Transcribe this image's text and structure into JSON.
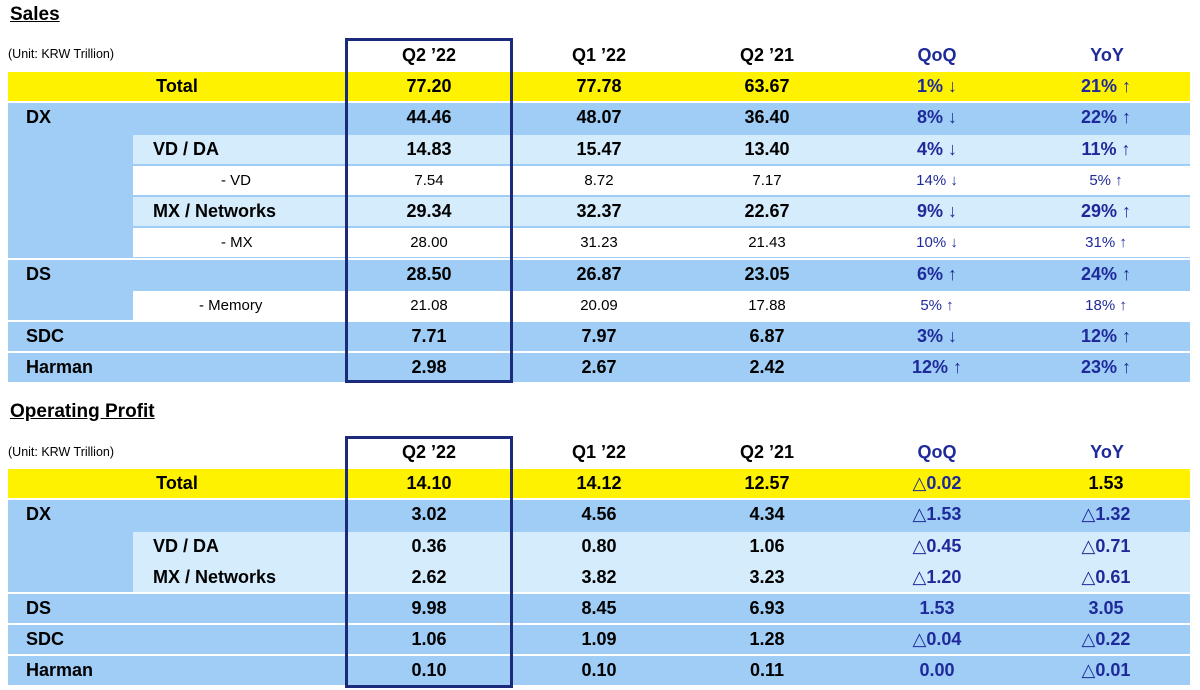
{
  "sales": {
    "title": "Sales",
    "unit": "(Unit: KRW Trillion)",
    "headers": [
      "Q2 ’22",
      "Q1 ’22",
      "Q2 ’21",
      "QoQ",
      "YoY"
    ],
    "rows": [
      {
        "label": "Total",
        "values": [
          "77.20",
          "77.78",
          "63.67",
          "1% ↓",
          "21% ↑"
        ]
      },
      {
        "label": "DX",
        "values": [
          "44.46",
          "48.07",
          "36.40",
          "8% ↓",
          "22% ↑"
        ]
      },
      {
        "label": "VD / DA",
        "values": [
          "14.83",
          "15.47",
          "13.40",
          "4% ↓",
          "11% ↑"
        ]
      },
      {
        "label": "- VD",
        "values": [
          "7.54",
          "8.72",
          "7.17",
          "14% ↓",
          "5% ↑"
        ]
      },
      {
        "label": "MX / Networks",
        "values": [
          "29.34",
          "32.37",
          "22.67",
          "9% ↓",
          "29% ↑"
        ]
      },
      {
        "label": "- MX",
        "values": [
          "28.00",
          "31.23",
          "21.43",
          "10% ↓",
          "31% ↑"
        ]
      },
      {
        "label": "DS",
        "values": [
          "28.50",
          "26.87",
          "23.05",
          "6% ↑",
          "24% ↑"
        ]
      },
      {
        "label": "- Memory",
        "values": [
          "21.08",
          "20.09",
          "17.88",
          "5% ↑",
          "18% ↑"
        ]
      },
      {
        "label": "SDC",
        "values": [
          "7.71",
          "7.97",
          "6.87",
          "3% ↓",
          "12% ↑"
        ]
      },
      {
        "label": "Harman",
        "values": [
          "2.98",
          "2.67",
          "2.42",
          "12% ↑",
          "23% ↑"
        ]
      }
    ]
  },
  "operating_profit": {
    "title": "Operating Profit",
    "unit": "(Unit: KRW Trillion)",
    "headers": [
      "Q2 ’22",
      "Q1 ’22",
      "Q2 ’21",
      "QoQ",
      "YoY"
    ],
    "rows": [
      {
        "label": "Total",
        "values": [
          "14.10",
          "14.12",
          "12.57",
          "△0.02",
          "1.53"
        ]
      },
      {
        "label": "DX",
        "values": [
          "3.02",
          "4.56",
          "4.34",
          "△1.53",
          "△1.32"
        ]
      },
      {
        "label": "VD / DA",
        "values": [
          "0.36",
          "0.80",
          "1.06",
          "△0.45",
          "△0.71"
        ]
      },
      {
        "label": "MX / Networks",
        "values": [
          "2.62",
          "3.82",
          "3.23",
          "△1.20",
          "△0.61"
        ]
      },
      {
        "label": "DS",
        "values": [
          "9.98",
          "8.45",
          "6.93",
          "1.53",
          "3.05"
        ]
      },
      {
        "label": "SDC",
        "values": [
          "1.06",
          "1.09",
          "1.28",
          "△0.04",
          "△0.22"
        ]
      },
      {
        "label": "Harman",
        "values": [
          "0.10",
          "0.10",
          "0.11",
          "0.00",
          "△0.01"
        ]
      }
    ]
  }
}
